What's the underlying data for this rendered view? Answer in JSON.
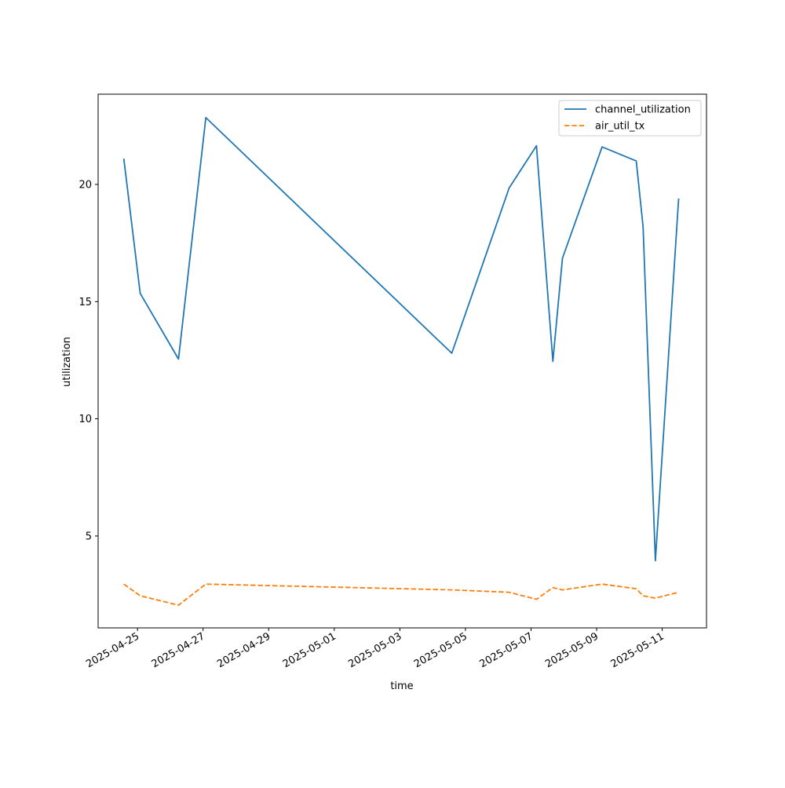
{
  "chart_data": {
    "type": "line",
    "title": "",
    "xlabel": "time",
    "ylabel": "utilization",
    "x_ticks": [
      "2025-04-25",
      "2025-04-27",
      "2025-04-29",
      "2025-05-01",
      "2025-05-03",
      "2025-05-05",
      "2025-05-07",
      "2025-05-09",
      "2025-05-11"
    ],
    "y_ticks": [
      5,
      10,
      15,
      20
    ],
    "xlim": [
      "2025-04-23T19:12",
      "2025-05-12T08:24"
    ],
    "ylim": [
      1.08,
      23.85
    ],
    "grid": false,
    "legend_position": "top-right",
    "x": [
      "2025-04-24T14:00",
      "2025-04-25T02:00",
      "2025-04-26T06:00",
      "2025-04-27T02:00",
      "2025-05-04T14:00",
      "2025-05-06T08:00",
      "2025-05-07T04:00",
      "2025-05-07T16:00",
      "2025-05-07T23:00",
      "2025-05-09T04:00",
      "2025-05-10T05:00",
      "2025-05-10T10:00",
      "2025-05-10T19:00",
      "2025-05-11T12:00"
    ],
    "series": [
      {
        "name": "channel_utilization",
        "color": "#1f77b4",
        "dash": "solid",
        "values": [
          21.1,
          15.35,
          12.55,
          22.85,
          12.8,
          19.85,
          21.65,
          12.45,
          16.85,
          21.6,
          21.0,
          18.2,
          3.95,
          19.4
        ]
      },
      {
        "name": "air_util_tx",
        "color": "#ff7f0e",
        "dash": "dashed",
        "values": [
          2.95,
          2.45,
          2.05,
          2.95,
          2.7,
          2.6,
          2.3,
          2.8,
          2.7,
          2.95,
          2.75,
          2.45,
          2.35,
          2.6
        ]
      }
    ]
  }
}
